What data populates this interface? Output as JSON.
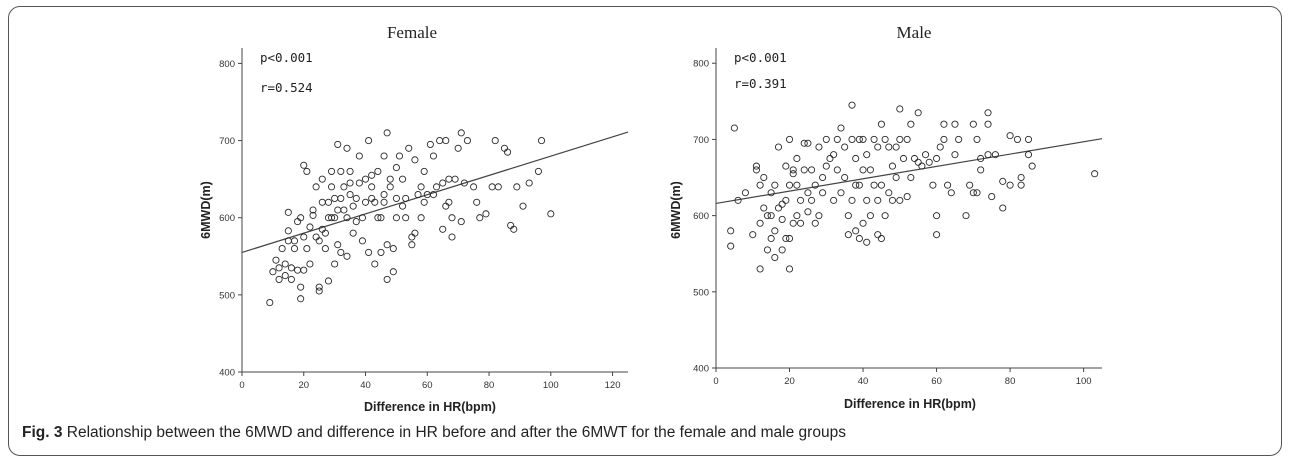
{
  "caption": {
    "lead": "Fig. 3",
    "text": " Relationship between the 6MWD and difference in HR before and after the 6MWT for the female and male groups"
  },
  "chart_data": [
    {
      "type": "scatter",
      "title": "Female",
      "xlabel": "Difference in HR(bpm)",
      "ylabel": "6MWD(m)",
      "xlim": [
        0,
        125
      ],
      "ylim": [
        400,
        820
      ],
      "x_ticks": [
        0,
        20,
        40,
        60,
        80,
        100,
        120
      ],
      "y_ticks": [
        400,
        500,
        600,
        700,
        800
      ],
      "annotations": [
        "p<0.001",
        "r=0.524"
      ],
      "grid": false,
      "fit_line": {
        "x": [
          0,
          125
        ],
        "y": [
          555,
          711
        ]
      },
      "points": [
        [
          9,
          490
        ],
        [
          10,
          530
        ],
        [
          11,
          545
        ],
        [
          12,
          520
        ],
        [
          12,
          535
        ],
        [
          13,
          560
        ],
        [
          14,
          525
        ],
        [
          14,
          540
        ],
        [
          15,
          570
        ],
        [
          15,
          583
        ],
        [
          15,
          607
        ],
        [
          16,
          520
        ],
        [
          16,
          535
        ],
        [
          17,
          560
        ],
        [
          17,
          570
        ],
        [
          18,
          532
        ],
        [
          18,
          595
        ],
        [
          19,
          510
        ],
        [
          19,
          600
        ],
        [
          19,
          495
        ],
        [
          20,
          532
        ],
        [
          20,
          575
        ],
        [
          20,
          668
        ],
        [
          21,
          560
        ],
        [
          21,
          660
        ],
        [
          22,
          540
        ],
        [
          22,
          588
        ],
        [
          23,
          603
        ],
        [
          23,
          610
        ],
        [
          24,
          575
        ],
        [
          24,
          640
        ],
        [
          25,
          505
        ],
        [
          25,
          510
        ],
        [
          25,
          570
        ],
        [
          26,
          585
        ],
        [
          26,
          620
        ],
        [
          26,
          650
        ],
        [
          27,
          560
        ],
        [
          27,
          580
        ],
        [
          28,
          518
        ],
        [
          28,
          600
        ],
        [
          28,
          620
        ],
        [
          29,
          600
        ],
        [
          29,
          640
        ],
        [
          29,
          660
        ],
        [
          30,
          540
        ],
        [
          30,
          600
        ],
        [
          30,
          625
        ],
        [
          31,
          565
        ],
        [
          31,
          610
        ],
        [
          31,
          695
        ],
        [
          32,
          555
        ],
        [
          32,
          625
        ],
        [
          32,
          660
        ],
        [
          33,
          610
        ],
        [
          33,
          640
        ],
        [
          34,
          550
        ],
        [
          34,
          600
        ],
        [
          34,
          690
        ],
        [
          35,
          630
        ],
        [
          35,
          645
        ],
        [
          35,
          660
        ],
        [
          36,
          580
        ],
        [
          36,
          615
        ],
        [
          37,
          595
        ],
        [
          37,
          625
        ],
        [
          38,
          645
        ],
        [
          38,
          680
        ],
        [
          39,
          570
        ],
        [
          39,
          600
        ],
        [
          40,
          620
        ],
        [
          40,
          650
        ],
        [
          41,
          700
        ],
        [
          41,
          555
        ],
        [
          42,
          625
        ],
        [
          42,
          640
        ],
        [
          42,
          655
        ],
        [
          43,
          540
        ],
        [
          43,
          620
        ],
        [
          44,
          600
        ],
        [
          44,
          660
        ],
        [
          45,
          555
        ],
        [
          45,
          600
        ],
        [
          46,
          620
        ],
        [
          46,
          680
        ],
        [
          46,
          630
        ],
        [
          47,
          520
        ],
        [
          47,
          565
        ],
        [
          47,
          710
        ],
        [
          48,
          640
        ],
        [
          48,
          650
        ],
        [
          49,
          530
        ],
        [
          49,
          560
        ],
        [
          50,
          600
        ],
        [
          50,
          625
        ],
        [
          50,
          665
        ],
        [
          51,
          680
        ],
        [
          52,
          615
        ],
        [
          52,
          650
        ],
        [
          53,
          600
        ],
        [
          53,
          625
        ],
        [
          54,
          690
        ],
        [
          55,
          575
        ],
        [
          55,
          565
        ],
        [
          56,
          580
        ],
        [
          56,
          675
        ],
        [
          57,
          630
        ],
        [
          58,
          640
        ],
        [
          58,
          600
        ],
        [
          59,
          620
        ],
        [
          59,
          660
        ],
        [
          60,
          630
        ],
        [
          61,
          695
        ],
        [
          62,
          630
        ],
        [
          62,
          680
        ],
        [
          63,
          640
        ],
        [
          64,
          700
        ],
        [
          65,
          585
        ],
        [
          65,
          645
        ],
        [
          66,
          615
        ],
        [
          66,
          700
        ],
        [
          67,
          650
        ],
        [
          67,
          620
        ],
        [
          68,
          575
        ],
        [
          68,
          600
        ],
        [
          69,
          650
        ],
        [
          70,
          690
        ],
        [
          71,
          595
        ],
        [
          71,
          710
        ],
        [
          72,
          645
        ],
        [
          73,
          700
        ],
        [
          75,
          640
        ],
        [
          76,
          620
        ],
        [
          77,
          600
        ],
        [
          79,
          605
        ],
        [
          81,
          640
        ],
        [
          82,
          700
        ],
        [
          83,
          640
        ],
        [
          85,
          690
        ],
        [
          86,
          685
        ],
        [
          87,
          590
        ],
        [
          88,
          585
        ],
        [
          89,
          640
        ],
        [
          91,
          615
        ],
        [
          93,
          645
        ],
        [
          96,
          660
        ],
        [
          97,
          700
        ],
        [
          100,
          605
        ]
      ]
    },
    {
      "type": "scatter",
      "title": "Male",
      "xlabel": "Difference in HR(bpm)",
      "ylabel": "6MWD(m)",
      "xlim": [
        0,
        105
      ],
      "ylim": [
        400,
        820
      ],
      "x_ticks": [
        0,
        20,
        40,
        60,
        80,
        100
      ],
      "y_ticks": [
        400,
        500,
        600,
        700,
        800
      ],
      "annotations": [
        "p<0.001",
        "r=0.391"
      ],
      "grid": false,
      "fit_line": {
        "x": [
          0,
          105
        ],
        "y": [
          616,
          701
        ]
      },
      "points": [
        [
          4,
          560
        ],
        [
          4,
          580
        ],
        [
          5,
          715
        ],
        [
          6,
          620
        ],
        [
          8,
          630
        ],
        [
          10,
          575
        ],
        [
          11,
          660
        ],
        [
          11,
          665
        ],
        [
          12,
          530
        ],
        [
          12,
          590
        ],
        [
          12,
          640
        ],
        [
          13,
          610
        ],
        [
          13,
          650
        ],
        [
          14,
          600
        ],
        [
          14,
          555
        ],
        [
          15,
          570
        ],
        [
          15,
          630
        ],
        [
          15,
          600
        ],
        [
          16,
          545
        ],
        [
          16,
          580
        ],
        [
          16,
          640
        ],
        [
          17,
          690
        ],
        [
          17,
          610
        ],
        [
          18,
          555
        ],
        [
          18,
          595
        ],
        [
          18,
          615
        ],
        [
          19,
          570
        ],
        [
          19,
          620
        ],
        [
          19,
          665
        ],
        [
          20,
          530
        ],
        [
          20,
          570
        ],
        [
          20,
          640
        ],
        [
          20,
          700
        ],
        [
          21,
          655
        ],
        [
          21,
          590
        ],
        [
          21,
          660
        ],
        [
          22,
          600
        ],
        [
          22,
          640
        ],
        [
          22,
          675
        ],
        [
          23,
          590
        ],
        [
          23,
          620
        ],
        [
          24,
          660
        ],
        [
          24,
          695
        ],
        [
          25,
          605
        ],
        [
          25,
          630
        ],
        [
          25,
          695
        ],
        [
          26,
          620
        ],
        [
          26,
          660
        ],
        [
          27,
          590
        ],
        [
          27,
          640
        ],
        [
          28,
          600
        ],
        [
          28,
          690
        ],
        [
          29,
          630
        ],
        [
          29,
          650
        ],
        [
          30,
          665
        ],
        [
          30,
          700
        ],
        [
          31,
          675
        ],
        [
          32,
          620
        ],
        [
          32,
          680
        ],
        [
          33,
          700
        ],
        [
          33,
          660
        ],
        [
          34,
          630
        ],
        [
          34,
          715
        ],
        [
          35,
          650
        ],
        [
          35,
          690
        ],
        [
          36,
          575
        ],
        [
          36,
          600
        ],
        [
          37,
          620
        ],
        [
          37,
          700
        ],
        [
          37,
          745
        ],
        [
          38,
          580
        ],
        [
          38,
          640
        ],
        [
          38,
          675
        ],
        [
          39,
          570
        ],
        [
          39,
          640
        ],
        [
          39,
          700
        ],
        [
          40,
          590
        ],
        [
          40,
          660
        ],
        [
          40,
          700
        ],
        [
          41,
          565
        ],
        [
          41,
          620
        ],
        [
          41,
          680
        ],
        [
          42,
          600
        ],
        [
          42,
          660
        ],
        [
          43,
          640
        ],
        [
          43,
          700
        ],
        [
          44,
          575
        ],
        [
          44,
          620
        ],
        [
          44,
          690
        ],
        [
          45,
          570
        ],
        [
          45,
          640
        ],
        [
          45,
          720
        ],
        [
          46,
          600
        ],
        [
          46,
          700
        ],
        [
          47,
          630
        ],
        [
          47,
          690
        ],
        [
          48,
          620
        ],
        [
          48,
          665
        ],
        [
          49,
          650
        ],
        [
          49,
          690
        ],
        [
          50,
          620
        ],
        [
          50,
          700
        ],
        [
          50,
          740
        ],
        [
          51,
          675
        ],
        [
          52,
          625
        ],
        [
          52,
          700
        ],
        [
          53,
          650
        ],
        [
          53,
          720
        ],
        [
          54,
          675
        ],
        [
          55,
          670
        ],
        [
          55,
          735
        ],
        [
          56,
          665
        ],
        [
          57,
          680
        ],
        [
          58,
          670
        ],
        [
          59,
          640
        ],
        [
          60,
          575
        ],
        [
          60,
          600
        ],
        [
          60,
          675
        ],
        [
          61,
          690
        ],
        [
          62,
          700
        ],
        [
          62,
          720
        ],
        [
          63,
          640
        ],
        [
          64,
          630
        ],
        [
          65,
          720
        ],
        [
          65,
          680
        ],
        [
          66,
          700
        ],
        [
          68,
          600
        ],
        [
          69,
          640
        ],
        [
          70,
          630
        ],
        [
          70,
          720
        ],
        [
          71,
          630
        ],
        [
          71,
          700
        ],
        [
          72,
          675
        ],
        [
          72,
          660
        ],
        [
          74,
          735
        ],
        [
          74,
          720
        ],
        [
          74,
          680
        ],
        [
          75,
          625
        ],
        [
          76,
          680
        ],
        [
          78,
          645
        ],
        [
          78,
          610
        ],
        [
          80,
          640
        ],
        [
          80,
          705
        ],
        [
          82,
          700
        ],
        [
          83,
          650
        ],
        [
          83,
          640
        ],
        [
          85,
          700
        ],
        [
          85,
          680
        ],
        [
          86,
          665
        ],
        [
          103,
          655
        ]
      ]
    }
  ]
}
